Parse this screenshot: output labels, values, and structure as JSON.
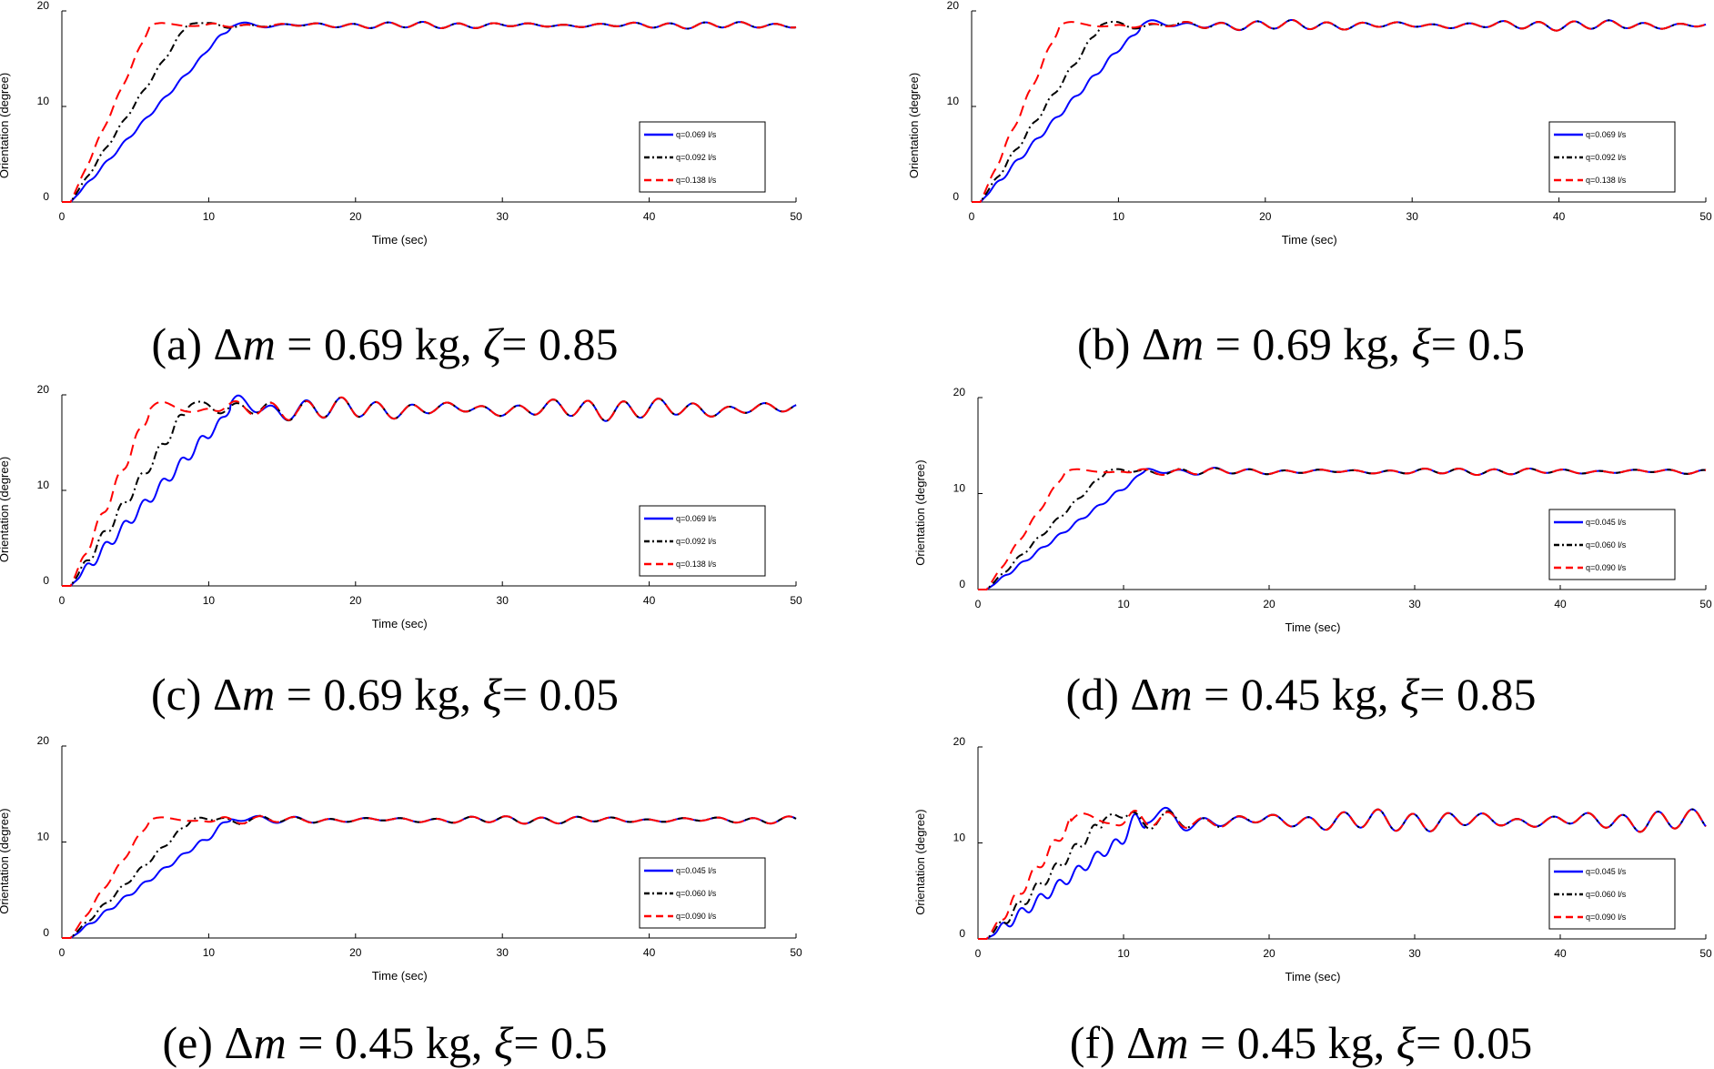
{
  "chart_data": [
    {
      "type": "line",
      "caption": {
        "prefix": "(a) Δ",
        "var": "m",
        "mid": " = 0.69 kg, ",
        "greek": "ζ",
        "suffix": "= 0.85"
      },
      "xlabel": "Time (sec)",
      "ylabel": "Orientation (degree)",
      "xlim": [
        0,
        50
      ],
      "ylim": [
        0,
        20
      ],
      "xticks": [
        0,
        10,
        20,
        30,
        40,
        50
      ],
      "yticks": [
        0,
        10,
        20
      ],
      "legend_position": "right",
      "steady": 18.5,
      "osc_amp": 0.3,
      "series": [
        {
          "name": "q=0.069 l/s",
          "color": "#0000ff",
          "dash": "solid",
          "rise": [
            0.6,
            11.5
          ]
        },
        {
          "name": "q=0.092 l/s",
          "color": "#000000",
          "dash": "dashdot",
          "rise": [
            0.6,
            8.5
          ]
        },
        {
          "name": "q=0.138 l/s",
          "color": "#ff0000",
          "dash": "dashed",
          "rise": [
            0.6,
            6.0
          ]
        }
      ]
    },
    {
      "type": "line",
      "caption": {
        "prefix": "(b) Δ",
        "var": "m",
        "mid": " = 0.69 kg, ",
        "greek": "ξ",
        "suffix": "= 0.5"
      },
      "xlabel": "Time (sec)",
      "ylabel": "Orientation (degree)",
      "xlim": [
        0,
        50
      ],
      "ylim": [
        0,
        20
      ],
      "xticks": [
        0,
        10,
        20,
        30,
        40,
        50
      ],
      "yticks": [
        0,
        10,
        20
      ],
      "legend_position": "right",
      "steady": 18.5,
      "osc_amp": 0.45,
      "series": [
        {
          "name": "q=0.069 l/s",
          "color": "#0000ff",
          "dash": "solid",
          "rise": [
            0.6,
            11.5
          ]
        },
        {
          "name": "q=0.092 l/s",
          "color": "#000000",
          "dash": "dashdot",
          "rise": [
            0.6,
            8.8
          ]
        },
        {
          "name": "q=0.138 l/s",
          "color": "#ff0000",
          "dash": "dashed",
          "rise": [
            0.6,
            6.0
          ]
        }
      ]
    },
    {
      "type": "line",
      "caption": {
        "prefix": "(c) Δ",
        "var": "m",
        "mid": " = 0.69 kg, ",
        "greek": "ξ",
        "suffix": "= 0.05"
      },
      "xlabel": "Time (sec)",
      "ylabel": "Orientation (degree)",
      "xlim": [
        0,
        50
      ],
      "ylim": [
        0,
        20
      ],
      "xticks": [
        0,
        10,
        20,
        30,
        40,
        50
      ],
      "yticks": [
        0,
        10,
        20
      ],
      "legend_position": "right",
      "steady": 18.5,
      "osc_amp": 1.0,
      "series": [
        {
          "name": "q=0.069 l/s",
          "color": "#0000ff",
          "dash": "solid",
          "rise": [
            0.6,
            11.5
          ]
        },
        {
          "name": "q=0.092 l/s",
          "color": "#000000",
          "dash": "dashdot",
          "rise": [
            0.6,
            8.5
          ]
        },
        {
          "name": "q=0.138 l/s",
          "color": "#ff0000",
          "dash": "dashed",
          "rise": [
            0.6,
            6.0
          ]
        }
      ]
    },
    {
      "type": "line",
      "caption": {
        "prefix": "(d) Δ",
        "var": "m",
        "mid": " = 0.45 kg, ",
        "greek": "ξ",
        "suffix": "= 0.85"
      },
      "xlabel": "Time (sec)",
      "ylabel": "Orientation (degree)",
      "xlim": [
        0,
        50
      ],
      "ylim": [
        0,
        20
      ],
      "xticks": [
        0,
        10,
        20,
        30,
        40,
        50
      ],
      "yticks": [
        0,
        10,
        20
      ],
      "legend_position": "right",
      "steady": 12.3,
      "osc_amp": 0.3,
      "series": [
        {
          "name": "q=0.045 l/s",
          "color": "#0000ff",
          "dash": "solid",
          "rise": [
            0.6,
            11.5
          ]
        },
        {
          "name": "q=0.060 l/s",
          "color": "#000000",
          "dash": "dashdot",
          "rise": [
            0.6,
            8.8
          ]
        },
        {
          "name": "q=0.090 l/s",
          "color": "#ff0000",
          "dash": "dashed",
          "rise": [
            0.6,
            6.0
          ]
        }
      ]
    },
    {
      "type": "line",
      "caption": {
        "prefix": "(e) Δ",
        "var": "m",
        "mid": " = 0.45 kg, ",
        "greek": "ξ",
        "suffix": "= 0.5"
      },
      "xlabel": "Time (sec)",
      "ylabel": "Orientation (degree)",
      "xlim": [
        0,
        50
      ],
      "ylim": [
        0,
        20
      ],
      "xticks": [
        0,
        10,
        20,
        30,
        40,
        50
      ],
      "yticks": [
        0,
        10,
        20
      ],
      "legend_position": "right",
      "steady": 12.3,
      "osc_amp": 0.35,
      "series": [
        {
          "name": "q=0.045 l/s",
          "color": "#0000ff",
          "dash": "solid",
          "rise": [
            0.6,
            11.5
          ]
        },
        {
          "name": "q=0.060 l/s",
          "color": "#000000",
          "dash": "dashdot",
          "rise": [
            0.6,
            8.8
          ]
        },
        {
          "name": "q=0.090 l/s",
          "color": "#ff0000",
          "dash": "dashed",
          "rise": [
            0.6,
            6.0
          ]
        }
      ]
    },
    {
      "type": "line",
      "caption": {
        "prefix": "(f) Δ",
        "var": "m",
        "mid": " = 0.45 kg, ",
        "greek": "ξ",
        "suffix": "= 0.05"
      },
      "xlabel": "Time (sec)",
      "ylabel": "Orientation (degree)",
      "xlim": [
        0,
        50
      ],
      "ylim": [
        0,
        20
      ],
      "xticks": [
        0,
        10,
        20,
        30,
        40,
        50
      ],
      "yticks": [
        0,
        10,
        20
      ],
      "legend_position": "right",
      "steady": 12.3,
      "osc_amp": 1.0,
      "series": [
        {
          "name": "q=0.045 l/s",
          "color": "#0000ff",
          "dash": "solid",
          "rise": [
            0.6,
            11.5
          ]
        },
        {
          "name": "q=0.060 l/s",
          "color": "#000000",
          "dash": "dashdot",
          "rise": [
            0.6,
            8.6
          ]
        },
        {
          "name": "q=0.090 l/s",
          "color": "#ff0000",
          "dash": "dashed",
          "rise": [
            0.6,
            6.4
          ]
        }
      ]
    }
  ]
}
